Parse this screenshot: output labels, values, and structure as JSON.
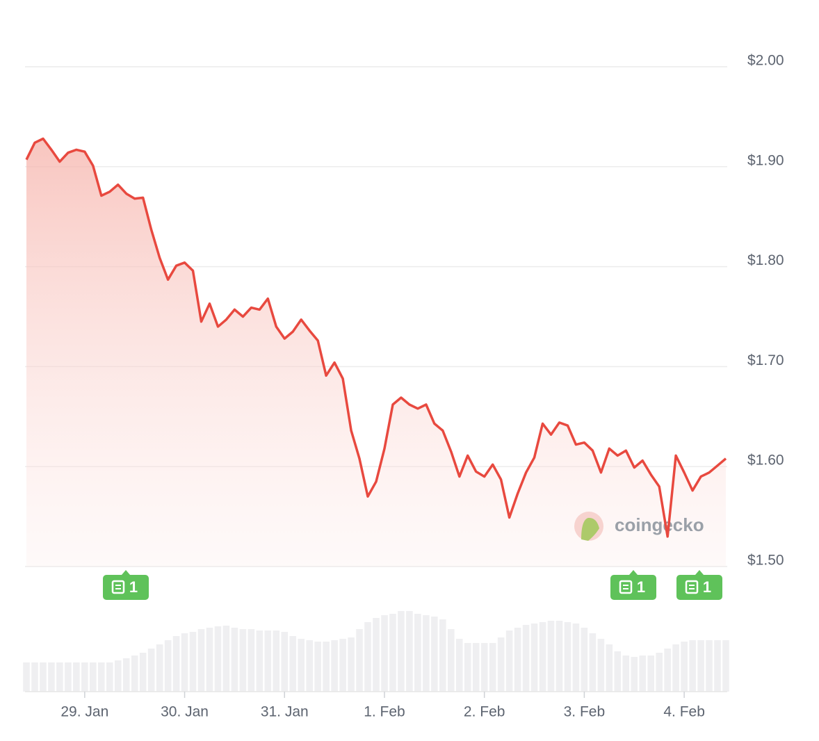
{
  "chart_data": {
    "type": "line",
    "categories": [
      null,
      null,
      null,
      null,
      null,
      null,
      null,
      "29. Jan",
      null,
      null,
      null,
      null,
      null,
      null,
      null,
      null,
      null,
      null,
      null,
      "30. Jan",
      null,
      null,
      null,
      null,
      null,
      null,
      null,
      null,
      null,
      null,
      null,
      "31. Jan",
      null,
      null,
      null,
      null,
      null,
      null,
      null,
      null,
      null,
      null,
      null,
      "1. Feb",
      null,
      null,
      null,
      null,
      null,
      null,
      null,
      null,
      null,
      null,
      null,
      "2. Feb",
      null,
      null,
      null,
      null,
      null,
      null,
      null,
      null,
      null,
      null,
      null,
      "3. Feb",
      null,
      null,
      null,
      null,
      null,
      null,
      null,
      null,
      null,
      null,
      null,
      "4. Feb",
      null,
      null,
      null,
      null,
      null
    ],
    "series": [
      {
        "color": "#e8493f",
        "values": [
          1.907,
          1.924,
          1.928,
          1.917,
          1.905,
          1.914,
          1.917,
          1.915,
          1.901,
          1.871,
          1.875,
          1.882,
          1.873,
          1.868,
          1.869,
          1.837,
          1.809,
          1.787,
          1.801,
          1.804,
          1.796,
          1.745,
          1.763,
          1.74,
          1.747,
          1.757,
          1.75,
          1.759,
          1.757,
          1.768,
          1.74,
          1.728,
          1.735,
          1.747,
          1.736,
          1.726,
          1.691,
          1.704,
          1.688,
          1.636,
          1.608,
          1.57,
          1.585,
          1.618,
          1.662,
          1.669,
          1.662,
          1.658,
          1.662,
          1.643,
          1.636,
          1.615,
          1.59,
          1.611,
          1.595,
          1.59,
          1.602,
          1.587,
          1.549,
          1.573,
          1.594,
          1.609,
          1.643,
          1.632,
          1.644,
          1.641,
          1.622,
          1.624,
          1.616,
          1.594,
          1.618,
          1.611,
          1.616,
          1.599,
          1.606,
          1.592,
          1.58,
          1.53,
          1.611,
          1.594,
          1.576,
          1.59,
          1.594,
          1.601,
          1.608
        ]
      }
    ],
    "volume": [
      42,
      42,
      42,
      42,
      42,
      42,
      42,
      42,
      42,
      42,
      42,
      45,
      48,
      52,
      56,
      62,
      68,
      74,
      80,
      84,
      86,
      90,
      92,
      94,
      95,
      92,
      90,
      90,
      88,
      88,
      88,
      86,
      80,
      76,
      74,
      72,
      72,
      74,
      76,
      78,
      90,
      100,
      106,
      110,
      112,
      116,
      116,
      112,
      110,
      108,
      104,
      90,
      76,
      70,
      70,
      70,
      70,
      78,
      88,
      92,
      96,
      98,
      100,
      102,
      102,
      100,
      98,
      92,
      84,
      76,
      68,
      58,
      52,
      50,
      52,
      52,
      56,
      62,
      68,
      72,
      74,
      74,
      74,
      74,
      74
    ],
    "ylim": [
      1.5,
      2.0
    ],
    "yticks": [
      {
        "value": 1.5,
        "label": "$1.50"
      },
      {
        "value": 1.6,
        "label": "$1.60"
      },
      {
        "value": 1.7,
        "label": "$1.70"
      },
      {
        "value": 1.8,
        "label": "$1.80"
      },
      {
        "value": 1.9,
        "label": "$1.90"
      },
      {
        "value": 2.0,
        "label": "$2.00"
      }
    ],
    "grid": true,
    "news_markers": [
      1,
      1,
      1
    ],
    "watermark": "coingecko"
  }
}
